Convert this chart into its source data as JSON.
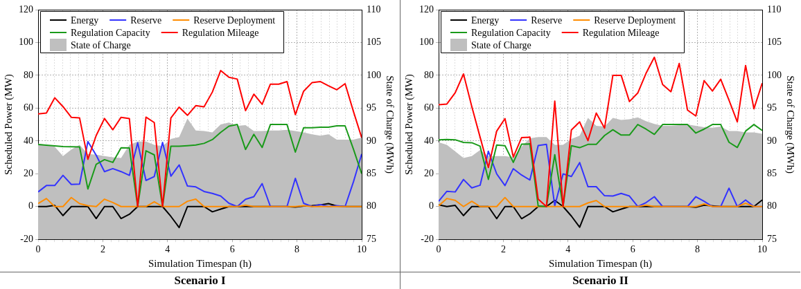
{
  "chart_data": [
    {
      "type": "line",
      "title": "Scenario I",
      "xlabel": "Simulation Timespan (h)",
      "ylabel": "Scheduled Power (MW)",
      "y2label": "State of Charge (MWh)",
      "x": [
        0,
        0.256,
        0.513,
        0.769,
        1.026,
        1.282,
        1.538,
        1.795,
        2.051,
        2.308,
        2.564,
        2.821,
        3.077,
        3.333,
        3.59,
        3.846,
        4.103,
        4.359,
        4.615,
        4.872,
        5.128,
        5.385,
        5.641,
        5.897,
        6.154,
        6.41,
        6.667,
        6.923,
        7.179,
        7.436,
        7.692,
        7.949,
        8.205,
        8.462,
        8.718,
        8.974,
        9.231,
        9.487,
        9.744,
        10
      ],
      "xlim": [
        0,
        10
      ],
      "xticks": [
        0,
        {
          "value": 0.25,
          "label": null
        },
        {
          "value": 0.5,
          "label": null
        },
        {
          "value": 0.75,
          "label": null
        },
        {
          "value": 1,
          "label": null
        },
        {
          "value": 1.25,
          "label": null
        },
        {
          "value": 1.5,
          "label": null
        },
        {
          "value": 1.75,
          "label": null
        },
        2,
        {
          "value": 2.25,
          "label": null
        },
        {
          "value": 2.5,
          "label": null
        },
        {
          "value": 2.75,
          "label": null
        },
        {
          "value": 3,
          "label": null
        },
        {
          "value": 3.25,
          "label": null
        },
        {
          "value": 3.5,
          "label": null
        },
        {
          "value": 3.75,
          "label": null
        },
        4,
        {
          "value": 4.25,
          "label": null
        },
        {
          "value": 4.5,
          "label": null
        },
        {
          "value": 4.75,
          "label": null
        },
        {
          "value": 5,
          "label": null
        },
        {
          "value": 5.25,
          "label": null
        },
        {
          "value": 5.5,
          "label": null
        },
        {
          "value": 5.75,
          "label": null
        },
        6,
        {
          "value": 6.25,
          "label": null
        },
        {
          "value": 6.5,
          "label": null
        },
        {
          "value": 6.75,
          "label": null
        },
        {
          "value": 7,
          "label": null
        },
        {
          "value": 7.25,
          "label": null
        },
        {
          "value": 7.5,
          "label": null
        },
        {
          "value": 7.75,
          "label": null
        },
        8,
        {
          "value": 8.25,
          "label": null
        },
        {
          "value": 8.5,
          "label": null
        },
        {
          "value": 8.75,
          "label": null
        },
        {
          "value": 9,
          "label": null
        },
        {
          "value": 9.25,
          "label": null
        },
        {
          "value": 9.5,
          "label": null
        },
        {
          "value": 9.75,
          "label": null
        },
        10
      ],
      "ylim": [
        -20,
        120
      ],
      "yticks": [
        -20,
        0,
        20,
        40,
        60,
        80,
        100,
        120
      ],
      "y2lim": [
        75,
        110
      ],
      "y2ticks": [
        75,
        80,
        85,
        90,
        95,
        100,
        105,
        110
      ],
      "grid": true,
      "legend": "top left",
      "series": [
        {
          "name": "Energy",
          "color": "#000000",
          "values": [
            0,
            0,
            0.7,
            -5.5,
            0,
            0,
            0,
            -7.3,
            0,
            0,
            -7.3,
            -4.7,
            0,
            0,
            0,
            0,
            -6,
            -12.8,
            0,
            0,
            0,
            -3.2,
            -1.6,
            0,
            0,
            0,
            0,
            0,
            0,
            0,
            0,
            -0.3,
            0.3,
            0.5,
            1,
            1.8,
            0.3,
            0,
            0,
            0
          ]
        },
        {
          "name": "Reserve",
          "color": "#3333ff",
          "values": [
            8.9,
            12.8,
            12.8,
            19,
            13.5,
            13.7,
            39.6,
            31.3,
            21.3,
            23.1,
            21.3,
            19,
            38.9,
            15.9,
            18.3,
            39.1,
            18.5,
            25.4,
            12.5,
            12,
            9.2,
            8,
            6.4,
            2,
            0,
            4.4,
            6,
            14,
            0,
            0,
            0,
            17.2,
            2,
            0,
            1.2,
            0,
            0.5,
            0,
            15,
            32
          ]
        },
        {
          "name": "Reserve Deployment",
          "color": "#ff8c00",
          "values": [
            1.8,
            4.9,
            0,
            0,
            5.5,
            1.8,
            0.5,
            0,
            4.5,
            2.5,
            0,
            0,
            0,
            0,
            2.9,
            0,
            0,
            0,
            3.2,
            4.5,
            0,
            0,
            0,
            0,
            0,
            0.8,
            0,
            0,
            0,
            0,
            0,
            0,
            0.5,
            0,
            0,
            0,
            0,
            0,
            0,
            0
          ]
        },
        {
          "name": "Regulation Capacity",
          "color": "#1a9a1a",
          "values": [
            37.8,
            37.4,
            37,
            36.6,
            36.4,
            36.3,
            10.7,
            25.8,
            28.6,
            26.9,
            35.8,
            35.7,
            0,
            34,
            31.5,
            0,
            36.8,
            36.8,
            37.1,
            37.5,
            38.5,
            40.8,
            45.2,
            49,
            50,
            34.8,
            44,
            36,
            50,
            50,
            50,
            33.2,
            48,
            48,
            48.4,
            48.4,
            49.2,
            49.2,
            35,
            20
          ]
        },
        {
          "name": "Regulation Mileage",
          "color": "#ff0000",
          "values": [
            56.5,
            57,
            66.3,
            60.9,
            54.4,
            54,
            28.8,
            43.3,
            53.7,
            46.8,
            54.4,
            53.6,
            0,
            54.5,
            51.2,
            0,
            54,
            60.6,
            55.6,
            61.5,
            60.8,
            69.8,
            82.9,
            78.8,
            77.7,
            58.5,
            68.5,
            62.3,
            74.6,
            74.6,
            76.2,
            56,
            70.3,
            75.5,
            76.2,
            73.6,
            71.2,
            74.9,
            58,
            42
          ]
        },
        {
          "name": "State of Charge",
          "type": "area",
          "axis": "y2",
          "color": "#bfbfbf",
          "values": [
            89.6,
            89.4,
            89.1,
            87.7,
            88.7,
            89.4,
            88,
            87.9,
            87.7,
            87.5,
            87.4,
            89.4,
            89.9,
            89.9,
            89.4,
            89.2,
            90.3,
            90.6,
            93.4,
            91.6,
            91.5,
            91.3,
            92.5,
            92.8,
            92.3,
            92.4,
            91.5,
            91.5,
            91.6,
            91.6,
            91.7,
            91.5,
            91.3,
            91,
            90.8,
            91,
            90.2,
            90.2,
            90.2,
            90.5
          ]
        }
      ]
    },
    {
      "type": "line",
      "title": "Scenario II",
      "xlabel": "Simulation Timespan (h)",
      "ylabel": "Scheduled Power (MW)",
      "y2label": "State of Charge (MWh)",
      "x": [
        0,
        0.256,
        0.513,
        0.769,
        1.026,
        1.282,
        1.538,
        1.795,
        2.051,
        2.308,
        2.564,
        2.821,
        3.077,
        3.333,
        3.59,
        3.846,
        4.103,
        4.359,
        4.615,
        4.872,
        5.128,
        5.385,
        5.641,
        5.897,
        6.154,
        6.41,
        6.667,
        6.923,
        7.179,
        7.436,
        7.692,
        7.949,
        8.205,
        8.462,
        8.718,
        8.974,
        9.231,
        9.487,
        9.744,
        10
      ],
      "xlim": [
        0,
        10
      ],
      "xticks": [
        0,
        {
          "value": 0.25,
          "label": null
        },
        {
          "value": 0.5,
          "label": null
        },
        {
          "value": 0.75,
          "label": null
        },
        {
          "value": 1,
          "label": null
        },
        {
          "value": 1.25,
          "label": null
        },
        {
          "value": 1.5,
          "label": null
        },
        {
          "value": 1.75,
          "label": null
        },
        2,
        {
          "value": 2.25,
          "label": null
        },
        {
          "value": 2.5,
          "label": null
        },
        {
          "value": 2.75,
          "label": null
        },
        {
          "value": 3,
          "label": null
        },
        {
          "value": 3.25,
          "label": null
        },
        {
          "value": 3.5,
          "label": null
        },
        {
          "value": 3.75,
          "label": null
        },
        4,
        {
          "value": 4.25,
          "label": null
        },
        {
          "value": 4.5,
          "label": null
        },
        {
          "value": 4.75,
          "label": null
        },
        {
          "value": 5,
          "label": null
        },
        {
          "value": 5.25,
          "label": null
        },
        {
          "value": 5.5,
          "label": null
        },
        {
          "value": 5.75,
          "label": null
        },
        6,
        {
          "value": 6.25,
          "label": null
        },
        {
          "value": 6.5,
          "label": null
        },
        {
          "value": 6.75,
          "label": null
        },
        {
          "value": 7,
          "label": null
        },
        {
          "value": 7.25,
          "label": null
        },
        {
          "value": 7.5,
          "label": null
        },
        {
          "value": 7.75,
          "label": null
        },
        8,
        {
          "value": 8.25,
          "label": null
        },
        {
          "value": 8.5,
          "label": null
        },
        {
          "value": 8.75,
          "label": null
        },
        {
          "value": 9,
          "label": null
        },
        {
          "value": 9.25,
          "label": null
        },
        {
          "value": 9.5,
          "label": null
        },
        {
          "value": 9.75,
          "label": null
        },
        10
      ],
      "ylim": [
        -20,
        120
      ],
      "yticks": [
        -20,
        0,
        20,
        40,
        60,
        80,
        100,
        120
      ],
      "y2lim": [
        75,
        110
      ],
      "y2ticks": [
        75,
        80,
        85,
        90,
        95,
        100,
        105,
        110
      ],
      "grid": true,
      "legend": "top left",
      "series": [
        {
          "name": "Energy",
          "color": "#000000",
          "values": [
            1.1,
            0,
            0.7,
            -5.5,
            0,
            0,
            0,
            -7.4,
            0,
            0,
            -7.4,
            -4.4,
            0,
            0,
            3.8,
            0,
            -5.8,
            -12.6,
            0,
            0,
            0,
            -3.2,
            -1.6,
            0,
            0,
            0,
            0,
            0,
            0,
            0,
            0,
            -0.4,
            0.8,
            0.4,
            0,
            0,
            0,
            0,
            0,
            4
          ]
        },
        {
          "name": "Reserve",
          "color": "#3333ff",
          "values": [
            3.2,
            9.3,
            8.9,
            16.5,
            11.4,
            13,
            33.7,
            19.9,
            12.8,
            23.1,
            19.2,
            16.2,
            37.2,
            37.9,
            0.4,
            19.9,
            18.3,
            26.8,
            12.1,
            12.1,
            6.6,
            6.4,
            8,
            6.4,
            0,
            2.4,
            6,
            0,
            0,
            0,
            0,
            6,
            3.2,
            0,
            0,
            11.2,
            0,
            4,
            0,
            0
          ]
        },
        {
          "name": "Reserve Deployment",
          "color": "#ff8c00",
          "values": [
            0.4,
            4.9,
            3.8,
            0,
            3.2,
            0,
            0,
            0,
            5.5,
            0,
            0,
            0,
            0,
            0,
            0,
            0,
            0,
            0,
            2.2,
            3.7,
            0,
            0,
            0,
            0,
            0,
            0.8,
            0,
            0,
            0,
            0,
            0,
            0,
            1.6,
            0,
            0,
            0,
            0,
            2,
            0,
            0
          ]
        },
        {
          "name": "Regulation Capacity",
          "color": "#1a9a1a",
          "values": [
            40.7,
            40.9,
            40.7,
            39.1,
            38.9,
            36.8,
            16.5,
            37.5,
            37.1,
            26.9,
            38,
            38.2,
            0.4,
            0,
            31.6,
            0,
            37.1,
            35.9,
            37.9,
            37.9,
            43.3,
            46.8,
            43.6,
            43.6,
            50,
            47.2,
            44,
            50,
            50,
            50,
            50,
            44.8,
            47.2,
            50,
            50,
            39.2,
            36,
            46,
            50,
            46.4
          ]
        },
        {
          "name": "Regulation Mileage",
          "color": "#ff0000",
          "values": [
            62,
            62.5,
            69.4,
            80.8,
            60.9,
            42.3,
            23.8,
            46,
            53.6,
            30.2,
            42,
            42.3,
            4.5,
            0,
            64.3,
            0,
            46.7,
            51.6,
            40.2,
            57,
            47.8,
            80,
            80,
            64,
            69.2,
            81.2,
            91,
            74.4,
            70,
            87.2,
            58.8,
            55.2,
            76.8,
            70.4,
            77.6,
            64.8,
            51.6,
            86,
            59.6,
            75.2
          ]
        },
        {
          "name": "State of Charge",
          "type": "area",
          "axis": "y2",
          "color": "#bfbfbf",
          "values": [
            89.8,
            89.4,
            88.4,
            87.4,
            87.7,
            88.6,
            87.7,
            87.7,
            87.7,
            87.5,
            89.1,
            90.4,
            90.6,
            90.6,
            89.4,
            89.4,
            90.3,
            90.8,
            93.5,
            92.3,
            92.2,
            93.5,
            93.2,
            93.3,
            93.6,
            93,
            92.6,
            92.3,
            92.3,
            92.4,
            92.5,
            92.3,
            92.1,
            92,
            92.2,
            91.5,
            91.5,
            91.3,
            91.3,
            91.1
          ]
        }
      ]
    }
  ]
}
